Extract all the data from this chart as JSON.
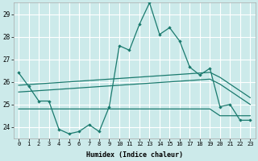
{
  "xlabel": "Humidex (Indice chaleur)",
  "bg_color": "#cceaea",
  "grid_color": "#ffffff",
  "line_color": "#1a7a6e",
  "x": [
    0,
    1,
    2,
    3,
    4,
    5,
    6,
    7,
    8,
    9,
    10,
    11,
    12,
    13,
    14,
    15,
    16,
    17,
    18,
    19,
    20,
    21,
    22,
    23
  ],
  "y_main": [
    26.4,
    25.8,
    25.15,
    25.15,
    23.9,
    23.7,
    23.8,
    24.1,
    23.8,
    24.9,
    27.6,
    27.4,
    28.55,
    29.5,
    28.1,
    28.4,
    27.8,
    26.65,
    26.3,
    26.6,
    24.9,
    25.0,
    24.3,
    24.3
  ],
  "reg1": [
    25.85,
    25.88,
    25.91,
    25.94,
    25.97,
    26.0,
    26.03,
    26.06,
    26.09,
    26.12,
    26.15,
    26.18,
    26.21,
    26.24,
    26.27,
    26.3,
    26.33,
    26.36,
    26.39,
    26.42,
    26.2,
    25.9,
    25.6,
    25.3
  ],
  "reg2": [
    25.55,
    25.58,
    25.61,
    25.64,
    25.67,
    25.7,
    25.73,
    25.76,
    25.79,
    25.82,
    25.85,
    25.88,
    25.91,
    25.94,
    25.97,
    26.0,
    26.03,
    26.06,
    26.09,
    26.12,
    25.9,
    25.6,
    25.3,
    25.0
  ],
  "flat1": [
    24.8,
    24.8,
    24.8,
    24.8,
    24.8,
    24.8,
    24.8,
    24.8,
    24.8,
    24.8,
    24.8,
    24.8,
    24.8,
    24.8,
    24.8,
    24.8,
    24.8,
    24.8,
    24.8,
    24.8,
    24.5,
    24.5,
    24.5,
    24.5
  ],
  "ylim": [
    23.5,
    29.5
  ],
  "yticks": [
    24,
    25,
    26,
    27,
    28,
    29
  ],
  "xticks": [
    0,
    1,
    2,
    3,
    4,
    5,
    6,
    7,
    8,
    9,
    10,
    11,
    12,
    13,
    14,
    15,
    16,
    17,
    18,
    19,
    20,
    21,
    22,
    23
  ]
}
